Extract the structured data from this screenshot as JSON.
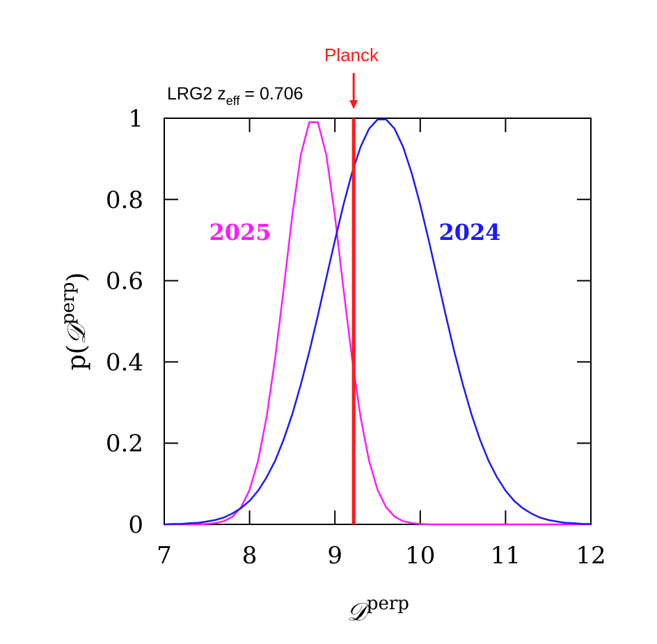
{
  "chart_data": {
    "type": "line",
    "annotation": {
      "text": "LRG2  z",
      "subscript": "eff",
      "text_after": " = 0.706"
    },
    "reference_line": {
      "label": "Planck",
      "x": 9.22,
      "color": "#ff1a1a"
    },
    "x_label": {
      "symbol": "𝒟",
      "superscript": "perp"
    },
    "y_label": {
      "prefix": "p(",
      "symbol": "𝒟",
      "superscript": "perp",
      "suffix": ")"
    },
    "x": [
      7.0,
      7.1,
      7.2,
      7.3,
      7.4,
      7.5,
      7.6,
      7.7,
      7.8,
      7.9,
      8.0,
      8.1,
      8.2,
      8.3,
      8.4,
      8.5,
      8.6,
      8.7,
      8.8,
      8.9,
      9.0,
      9.1,
      9.2,
      9.3,
      9.4,
      9.5,
      9.6,
      9.7,
      9.8,
      9.9,
      10.0,
      10.1,
      10.2,
      10.3,
      10.4,
      10.5,
      10.6,
      10.7,
      10.8,
      10.9,
      11.0,
      11.1,
      11.2,
      11.3,
      11.4,
      11.5,
      11.6,
      11.7,
      11.8,
      11.9,
      12.0
    ],
    "series": [
      {
        "name": "2025",
        "color": "#ff1aff",
        "values": [
          0,
          0,
          0,
          0,
          0,
          0.001,
          0.003,
          0.008,
          0.019,
          0.042,
          0.085,
          0.157,
          0.265,
          0.41,
          0.58,
          0.76,
          0.91,
          0.99,
          0.99,
          0.91,
          0.76,
          0.58,
          0.41,
          0.265,
          0.157,
          0.085,
          0.042,
          0.019,
          0.008,
          0.003,
          0.001,
          0,
          0,
          0,
          0,
          0,
          0,
          0,
          0,
          0,
          0,
          0,
          0,
          0,
          0,
          0,
          0,
          0,
          0,
          0,
          0
        ]
      },
      {
        "name": "2024",
        "color": "#1a1aff",
        "values": [
          0,
          0.001,
          0.001,
          0.003,
          0.004,
          0.007,
          0.011,
          0.017,
          0.027,
          0.04,
          0.058,
          0.083,
          0.116,
          0.157,
          0.209,
          0.271,
          0.344,
          0.425,
          0.514,
          0.607,
          0.699,
          0.787,
          0.865,
          0.929,
          0.974,
          0.997,
          0.997,
          0.974,
          0.929,
          0.865,
          0.787,
          0.699,
          0.607,
          0.514,
          0.425,
          0.344,
          0.271,
          0.209,
          0.157,
          0.116,
          0.083,
          0.058,
          0.04,
          0.027,
          0.017,
          0.011,
          0.007,
          0.004,
          0.003,
          0.001,
          0.001
        ]
      }
    ],
    "xlim": [
      7,
      12
    ],
    "xticks": [
      7,
      8,
      9,
      10,
      11,
      12
    ],
    "ylim": [
      0,
      1
    ],
    "yticks": [
      0,
      0.2,
      0.4,
      0.6,
      0.8,
      1
    ]
  }
}
